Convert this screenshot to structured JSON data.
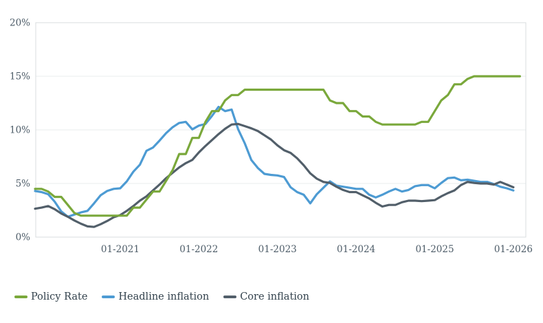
{
  "chart_data": {
    "type": "line",
    "title": "",
    "x_start": "2019-12",
    "x_frequency": "monthly",
    "x_tick_labels": [
      "01-2021",
      "01-2022",
      "01-2023",
      "01-2024",
      "01-2025",
      "01-2026"
    ],
    "y_ticks": [
      0,
      5,
      10,
      15,
      20
    ],
    "y_tick_labels": [
      "0%",
      "5%",
      "10%",
      "15%",
      "20%"
    ],
    "ylim": [
      0,
      20
    ],
    "grid": "horizontal",
    "legend_position": "bottom-left",
    "series": [
      {
        "name": "Policy Rate",
        "color": "#7aa83b",
        "values": [
          4.5,
          4.5,
          4.25,
          3.75,
          3.75,
          3.0,
          2.25,
          2.0,
          2.0,
          2.0,
          2.0,
          2.0,
          2.0,
          2.0,
          2.0,
          2.75,
          2.75,
          3.5,
          4.25,
          4.25,
          5.25,
          6.25,
          7.75,
          7.75,
          9.25,
          9.25,
          10.75,
          11.75,
          11.75,
          12.75,
          13.25,
          13.25,
          13.75,
          13.75,
          13.75,
          13.75,
          13.75,
          13.75,
          13.75,
          13.75,
          13.75,
          13.75,
          13.75,
          13.75,
          13.75,
          12.75,
          12.5,
          12.5,
          11.75,
          11.75,
          11.25,
          11.25,
          10.75,
          10.5,
          10.5,
          10.5,
          10.5,
          10.5,
          10.5,
          10.75,
          10.75,
          11.75,
          12.75,
          13.25,
          14.25,
          14.25,
          14.75,
          15.0,
          15.0,
          15.0,
          15.0,
          15.0,
          15.0,
          15.0,
          15.0
        ]
      },
      {
        "name": "Headline inflation",
        "color": "#4d9bd3",
        "values": [
          4.3,
          4.2,
          4.0,
          3.3,
          2.4,
          1.9,
          2.1,
          2.3,
          2.45,
          3.15,
          3.9,
          4.3,
          4.5,
          4.55,
          5.2,
          6.1,
          6.75,
          8.05,
          8.35,
          9.0,
          9.7,
          10.25,
          10.65,
          10.75,
          10.05,
          10.4,
          10.55,
          11.3,
          12.15,
          11.75,
          11.9,
          10.05,
          8.75,
          7.2,
          6.45,
          5.9,
          5.8,
          5.75,
          5.6,
          4.65,
          4.2,
          3.95,
          3.15,
          4.0,
          4.6,
          5.2,
          4.8,
          4.7,
          4.6,
          4.5,
          4.5,
          3.95,
          3.7,
          3.95,
          4.25,
          4.5,
          4.25,
          4.4,
          4.75,
          4.85,
          4.85,
          4.55,
          5.05,
          5.5,
          5.55,
          5.3,
          5.35,
          5.25,
          5.15,
          5.15,
          4.95,
          4.7,
          4.55,
          4.35
        ]
      },
      {
        "name": "Core inflation",
        "color": "#525f6a",
        "values": [
          2.65,
          2.75,
          2.9,
          2.6,
          2.2,
          1.9,
          1.55,
          1.25,
          1.0,
          0.95,
          1.2,
          1.5,
          1.85,
          2.05,
          2.45,
          2.9,
          3.4,
          3.8,
          4.35,
          4.9,
          5.5,
          6.0,
          6.5,
          6.9,
          7.2,
          7.9,
          8.5,
          9.05,
          9.6,
          10.1,
          10.5,
          10.55,
          10.35,
          10.15,
          9.9,
          9.5,
          9.1,
          8.55,
          8.1,
          7.85,
          7.35,
          6.7,
          5.95,
          5.45,
          5.15,
          5.05,
          4.7,
          4.4,
          4.2,
          4.2,
          3.9,
          3.6,
          3.2,
          2.85,
          3.0,
          3.0,
          3.25,
          3.4,
          3.4,
          3.35,
          3.4,
          3.45,
          3.8,
          4.1,
          4.35,
          4.85,
          5.15,
          5.05,
          5.0,
          5.0,
          4.9,
          5.15,
          4.9,
          4.65
        ]
      }
    ]
  },
  "colors": {
    "background": "#ffffff",
    "grid": "#eaecee",
    "plot_border": "#d8dcdf",
    "tick_text": "#4d5c68",
    "legend_text": "#33424d"
  }
}
